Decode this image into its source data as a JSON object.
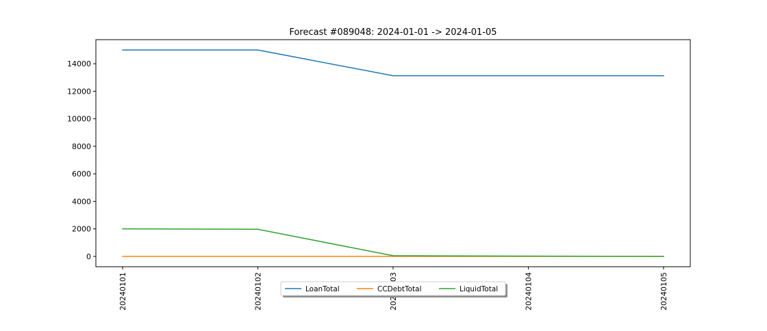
{
  "chart_data": {
    "type": "line",
    "title": "Forecast #089048: 2024-01-01 -> 2024-01-05",
    "xlabel": "",
    "ylabel": "",
    "categories": [
      "20240101",
      "20240102",
      "20240103",
      "20240104",
      "20240105"
    ],
    "series": [
      {
        "name": "LoanTotal",
        "color": "#1f77b4",
        "values": [
          15000,
          15000,
          13130,
          13130,
          13130
        ]
      },
      {
        "name": "CCDebtTotal",
        "color": "#ff7f0e",
        "values": [
          0,
          0,
          0,
          0,
          0
        ]
      },
      {
        "name": "LiquidTotal",
        "color": "#2ca02c",
        "values": [
          2000,
          1970,
          50,
          20,
          0
        ]
      }
    ],
    "ylim": [
      -750,
      15750
    ],
    "yticks": [
      0,
      2000,
      4000,
      6000,
      8000,
      10000,
      12000,
      14000
    ],
    "ytick_labels": [
      "0",
      "2000",
      "4000",
      "6000",
      "8000",
      "10000",
      "12000",
      "14000"
    ],
    "grid": false,
    "legend": {
      "placement": "lower-center",
      "columns": 3
    }
  }
}
